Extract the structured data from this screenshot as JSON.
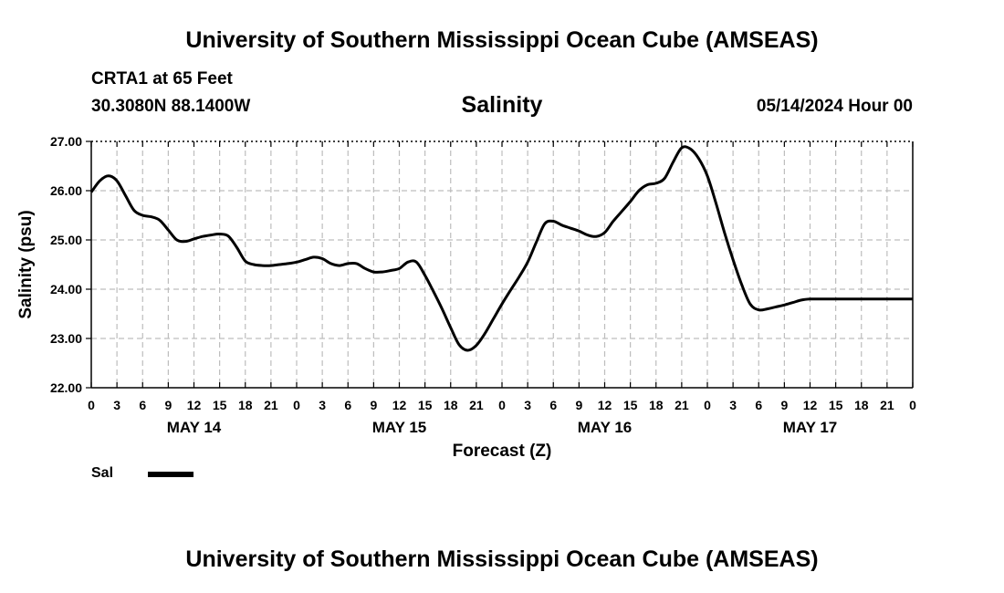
{
  "header": {
    "title": "University of Southern Mississippi Ocean Cube (AMSEAS)",
    "station": "CRTA1 at 65 Feet",
    "coordinates": "30.3080N  88.1400W",
    "variable": "Salinity",
    "datetime": "05/14/2024 Hour 00"
  },
  "footer": {
    "title": "University of Southern Mississippi Ocean Cube (AMSEAS)"
  },
  "legend": {
    "label": "Sal",
    "color": "#000000"
  },
  "chart_data": {
    "type": "line",
    "title": "Salinity",
    "xlabel": "Forecast (Z)",
    "ylabel": "Salinity (psu)",
    "xlim": [
      0,
      96
    ],
    "ylim": [
      22.0,
      27.0
    ],
    "yticks": [
      "22.00",
      "23.00",
      "24.00",
      "25.00",
      "26.00",
      "27.00"
    ],
    "xticks": [
      "0",
      "3",
      "6",
      "9",
      "12",
      "15",
      "18",
      "21",
      "0",
      "3",
      "6",
      "9",
      "12",
      "15",
      "18",
      "21",
      "0",
      "3",
      "6",
      "9",
      "12",
      "15",
      "18",
      "21",
      "0",
      "3",
      "6",
      "9",
      "12",
      "15",
      "18",
      "21",
      "0"
    ],
    "day_labels": [
      {
        "label": "MAY 14",
        "hour": 12
      },
      {
        "label": "MAY 15",
        "hour": 36
      },
      {
        "label": "MAY 16",
        "hour": 60
      },
      {
        "label": "MAY 17",
        "hour": 84
      }
    ],
    "grid": true,
    "series": [
      {
        "name": "Sal",
        "x": [
          0,
          1,
          2,
          3,
          4,
          5,
          6,
          7,
          8,
          9,
          10,
          11,
          12,
          13,
          14,
          15,
          16,
          17,
          18,
          19,
          20,
          21,
          22,
          23,
          24,
          25,
          26,
          27,
          28,
          29,
          30,
          31,
          32,
          33,
          34,
          35,
          36,
          37,
          38,
          39,
          40,
          41,
          42,
          43,
          44,
          45,
          46,
          47,
          48,
          49,
          50,
          51,
          52,
          53,
          54,
          55,
          56,
          57,
          58,
          59,
          60,
          61,
          62,
          63,
          64,
          65,
          66,
          67,
          68,
          69,
          70,
          71,
          72,
          73,
          74,
          75,
          76,
          77,
          78,
          79,
          80,
          81,
          82,
          83,
          84,
          85,
          86,
          87,
          88,
          89,
          90,
          91,
          92,
          93,
          94,
          95,
          96
        ],
        "values": [
          25.97,
          26.2,
          26.3,
          26.2,
          25.9,
          25.6,
          25.5,
          25.47,
          25.4,
          25.2,
          25.0,
          24.97,
          25.02,
          25.07,
          25.1,
          25.12,
          25.08,
          24.85,
          24.57,
          24.5,
          24.48,
          24.48,
          24.5,
          24.52,
          24.55,
          24.6,
          24.65,
          24.62,
          24.52,
          24.48,
          24.52,
          24.52,
          24.42,
          24.35,
          24.35,
          24.38,
          24.42,
          24.55,
          24.55,
          24.28,
          23.95,
          23.6,
          23.22,
          22.87,
          22.76,
          22.86,
          23.1,
          23.4,
          23.7,
          23.98,
          24.25,
          24.55,
          24.95,
          25.33,
          25.38,
          25.3,
          25.24,
          25.18,
          25.1,
          25.07,
          25.15,
          25.38,
          25.58,
          25.78,
          26.0,
          26.12,
          26.15,
          26.25,
          26.58,
          26.87,
          26.85,
          26.65,
          26.3,
          25.75,
          25.15,
          24.6,
          24.1,
          23.7,
          23.58,
          23.6,
          23.64,
          23.68,
          23.73,
          23.78,
          23.8,
          23.8,
          23.8,
          23.8,
          23.8,
          23.8,
          23.8,
          23.8,
          23.8,
          23.8,
          23.8,
          23.8,
          23.8
        ]
      }
    ]
  }
}
